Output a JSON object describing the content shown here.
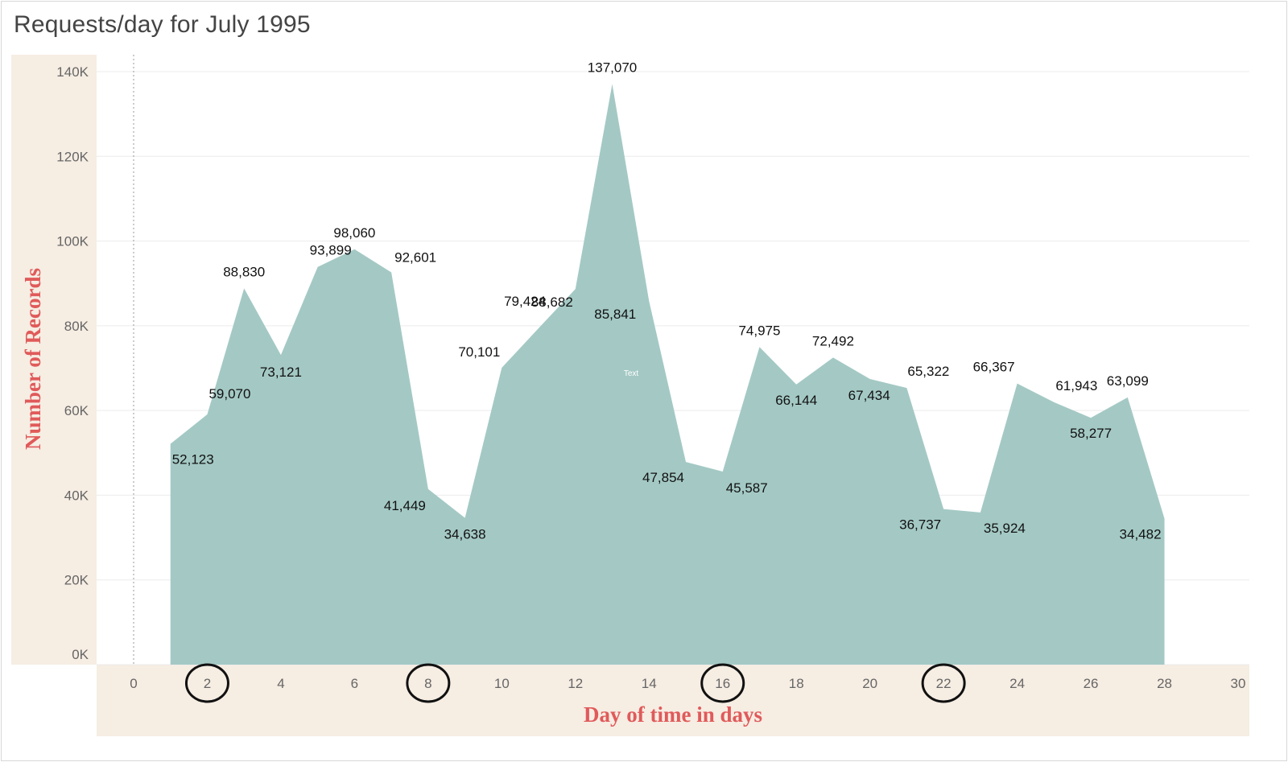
{
  "title": "Requests/day for July 1995",
  "chart_data": {
    "type": "area",
    "title": "Requests/day for July 1995",
    "xlabel": "Day of time in days",
    "ylabel": "Number of Records",
    "xlim": [
      0,
      30
    ],
    "ylim": [
      0,
      140000
    ],
    "x_ticks": [
      "0",
      "2",
      "4",
      "6",
      "8",
      "10",
      "12",
      "14",
      "16",
      "18",
      "20",
      "22",
      "24",
      "26",
      "28",
      "30"
    ],
    "y_ticks": [
      "0K",
      "20K",
      "40K",
      "60K",
      "80K",
      "100K",
      "120K",
      "140K"
    ],
    "circled_x_ticks": [
      2,
      8,
      16,
      22
    ],
    "annotation": "Text",
    "grid": true,
    "color": "#a4c9c5",
    "series": [
      {
        "x": [
          1,
          2,
          3,
          4,
          5,
          6,
          7,
          8,
          9,
          10,
          11,
          12,
          13,
          14,
          15,
          16,
          17,
          18,
          19,
          20,
          21,
          22,
          23,
          24,
          25,
          26,
          27,
          28
        ],
        "values": [
          52123,
          59070,
          88830,
          73121,
          93899,
          98060,
          92601,
          41449,
          34638,
          70101,
          79424,
          88682,
          137070,
          85841,
          47854,
          45587,
          74975,
          66144,
          72492,
          67434,
          65322,
          36737,
          35924,
          66367,
          61943,
          58277,
          63099,
          34482
        ],
        "labels": [
          "52,123",
          "59,070",
          "88,830",
          "73,121",
          "93,899",
          "98,060",
          "92,601",
          "41,449",
          "34,638",
          "70,101",
          "79,424",
          "88,682",
          "137,070",
          "85,841",
          "47,854",
          "45,587",
          "74,975",
          "66,144",
          "72,492",
          "67,434",
          "65,322",
          "36,737",
          "35,924",
          "66,367",
          "61,943",
          "58,277",
          "63,099",
          "34,482"
        ]
      }
    ]
  }
}
